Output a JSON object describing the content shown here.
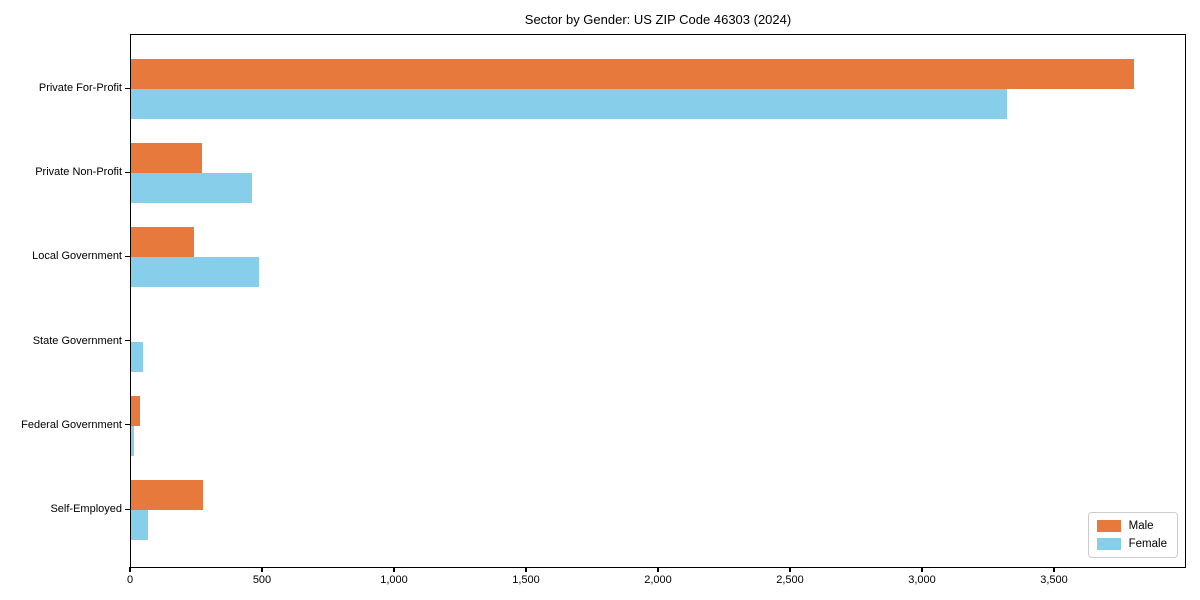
{
  "chart_data": {
    "type": "bar",
    "orientation": "horizontal",
    "title": "Sector by Gender: US ZIP Code 46303 (2024)",
    "categories": [
      "Private For-Profit",
      "Private Non-Profit",
      "Local Government",
      "State Government",
      "Federal Government",
      "Self-Employed"
    ],
    "series": [
      {
        "name": "Male",
        "color": "#e8793d",
        "values": [
          3800,
          268,
          240,
          0,
          33,
          274
        ]
      },
      {
        "name": "Female",
        "color": "#87ceeb",
        "values": [
          3320,
          458,
          485,
          47,
          11,
          66
        ]
      }
    ],
    "xlabel": "",
    "ylabel": "",
    "xlim": [
      0,
      4000
    ],
    "xticks": [
      0,
      500,
      1000,
      1500,
      2000,
      2500,
      3000,
      3500
    ],
    "xtick_labels": [
      "0",
      "500",
      "1,000",
      "1,500",
      "2,000",
      "2,500",
      "3,000",
      "3,500"
    ],
    "grid": false,
    "legend_position": "lower right",
    "axis_color": "#000000"
  }
}
